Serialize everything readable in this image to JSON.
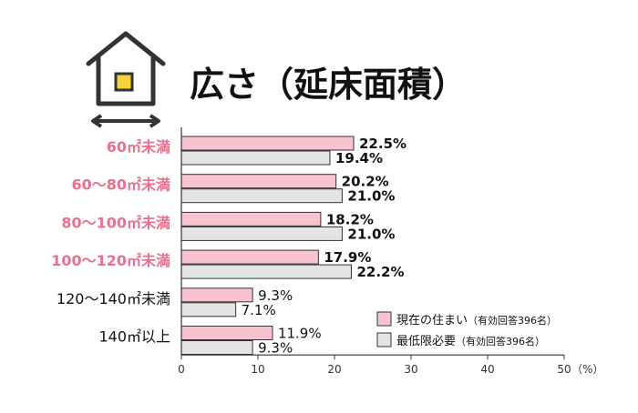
{
  "title": "広さ（延床面積）",
  "colors": {
    "current": "#f7c3cf",
    "minimum": "#e4e4e4",
    "highlight_text": "#e8728e",
    "border": "#333333"
  },
  "legend": [
    {
      "label": "現在の住まい",
      "note": "（有効回答396名）",
      "color": "#f7c3cf"
    },
    {
      "label": "最低限必要",
      "note": "（有効回答396名）",
      "color": "#e4e4e4"
    }
  ],
  "chart_data": {
    "type": "bar",
    "orientation": "horizontal",
    "title": "広さ（延床面積）",
    "categories": [
      "60㎡未満",
      "60〜80㎡未満",
      "80〜100㎡未満",
      "100〜120㎡未満",
      "120〜140㎡未満",
      "140㎡以上"
    ],
    "highlighted_categories": [
      0,
      1,
      2,
      3
    ],
    "series": [
      {
        "name": "現在の住まい",
        "values": [
          22.5,
          20.2,
          18.2,
          17.9,
          9.3,
          11.9
        ],
        "labels": [
          "22.5%",
          "20.2%",
          "18.2%",
          "17.9%",
          "9.3%",
          "11.9%"
        ]
      },
      {
        "name": "最低限必要",
        "values": [
          19.4,
          21.0,
          21.0,
          22.2,
          7.1,
          9.3
        ],
        "labels": [
          "19.4%",
          "21.0%",
          "21.0%",
          "22.2%",
          "7.1%",
          "9.3%"
        ]
      }
    ],
    "xlim": [
      0,
      50
    ],
    "xticks": [
      "0",
      "10",
      "20",
      "30",
      "40",
      "50"
    ],
    "xunit": "（%）",
    "grid": false,
    "legend_position": "bottom-right"
  }
}
